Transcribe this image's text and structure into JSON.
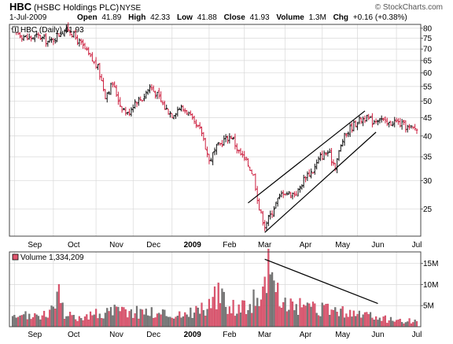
{
  "header": {
    "symbol": "HBC",
    "company": "(HSBC Holdings PLC)",
    "exchange": "NYSE",
    "brand": "© StockCharts.com",
    "date": "1-Jul-2009",
    "open_label": "Open",
    "open": "41.89",
    "high_label": "High",
    "high": "42.33",
    "low_label": "Low",
    "low": "41.88",
    "close_label": "Close",
    "close": "41.93",
    "volume_label": "Volume",
    "volume": "1.3M",
    "chg_label": "Chg",
    "chg": "+0.16 (+0.38%)"
  },
  "price_panel": {
    "legend": "HBC (Daily) 41.93",
    "y_ticks": [
      80,
      75,
      70,
      65,
      60,
      55,
      50,
      45,
      40,
      35,
      30,
      25
    ],
    "y_range": [
      21,
      82
    ],
    "scale": "log"
  },
  "volume_panel": {
    "legend": "Volume 1,334,209",
    "y_ticks": [
      {
        "value": 15,
        "label": "15M"
      },
      {
        "value": 10,
        "label": "10M"
      },
      {
        "value": 5,
        "label": "5M"
      }
    ],
    "y_max": 17
  },
  "x_axis": {
    "labels": [
      {
        "label": "Sep",
        "bold": false,
        "day": 12
      },
      {
        "label": "Oct",
        "bold": false,
        "day": 33
      },
      {
        "label": "Nov",
        "bold": false,
        "day": 56
      },
      {
        "label": "Dec",
        "bold": false,
        "day": 76
      },
      {
        "label": "2009",
        "bold": true,
        "day": 97
      },
      {
        "label": "Feb",
        "bold": false,
        "day": 117
      },
      {
        "label": "Mar",
        "bold": false,
        "day": 136
      },
      {
        "label": "Apr",
        "bold": false,
        "day": 158
      },
      {
        "label": "May",
        "bold": false,
        "day": 178
      },
      {
        "label": "Jun",
        "bold": false,
        "day": 197
      },
      {
        "label": "Jul",
        "bold": false,
        "day": 218
      }
    ]
  },
  "chart_data": {
    "type": "ohlc",
    "series_name": "HBC (Daily)",
    "close_path": [
      [
        0,
        79
      ],
      [
        8,
        75
      ],
      [
        14,
        76
      ],
      [
        20,
        73
      ],
      [
        26,
        78
      ],
      [
        30,
        80
      ],
      [
        34,
        75
      ],
      [
        38,
        71
      ],
      [
        42,
        66
      ],
      [
        46,
        62
      ],
      [
        50,
        52
      ],
      [
        54,
        56
      ],
      [
        58,
        49
      ],
      [
        62,
        46
      ],
      [
        66,
        50
      ],
      [
        70,
        51
      ],
      [
        74,
        55
      ],
      [
        78,
        52
      ],
      [
        82,
        48
      ],
      [
        86,
        46
      ],
      [
        90,
        48
      ],
      [
        94,
        47
      ],
      [
        98,
        43
      ],
      [
        102,
        41
      ],
      [
        106,
        34
      ],
      [
        110,
        37
      ],
      [
        114,
        39
      ],
      [
        118,
        40
      ],
      [
        122,
        36
      ],
      [
        126,
        34
      ],
      [
        130,
        31
      ],
      [
        133,
        25
      ],
      [
        136,
        22.5
      ],
      [
        139,
        24
      ],
      [
        142,
        26
      ],
      [
        146,
        28
      ],
      [
        150,
        27.5
      ],
      [
        154,
        28
      ],
      [
        158,
        31
      ],
      [
        162,
        32
      ],
      [
        166,
        35
      ],
      [
        170,
        36
      ],
      [
        174,
        33
      ],
      [
        178,
        39
      ],
      [
        182,
        42
      ],
      [
        186,
        44
      ],
      [
        190,
        45
      ],
      [
        194,
        44
      ],
      [
        198,
        45
      ],
      [
        202,
        43
      ],
      [
        206,
        44
      ],
      [
        210,
        43
      ],
      [
        214,
        42
      ],
      [
        218,
        41.93
      ]
    ],
    "volume_path": [
      [
        0,
        2
      ],
      [
        10,
        3
      ],
      [
        20,
        3
      ],
      [
        24,
        10
      ],
      [
        28,
        2.5
      ],
      [
        40,
        3
      ],
      [
        55,
        4
      ],
      [
        70,
        4
      ],
      [
        90,
        3
      ],
      [
        104,
        5
      ],
      [
        110,
        8
      ],
      [
        114,
        7
      ],
      [
        120,
        5
      ],
      [
        128,
        6
      ],
      [
        135,
        9
      ],
      [
        136,
        17
      ],
      [
        140,
        11
      ],
      [
        146,
        6
      ],
      [
        160,
        4.5
      ],
      [
        175,
        4
      ],
      [
        190,
        3
      ],
      [
        200,
        2
      ],
      [
        218,
        1.3
      ]
    ],
    "trend_channel": {
      "upper": [
        [
          127,
          26
        ],
        [
          190,
          47
        ]
      ],
      "lower": [
        [
          136,
          21.5
        ],
        [
          196,
          41
        ]
      ]
    },
    "volume_trendline": [
      [
        136,
        16
      ],
      [
        197,
        5.5
      ]
    ],
    "colors": {
      "up": "#111111",
      "down": "#cc1f3f",
      "volume_up": "#777777",
      "volume_down": "#e0566f",
      "grid": "#d8d8d8",
      "frame": "#444444"
    }
  }
}
